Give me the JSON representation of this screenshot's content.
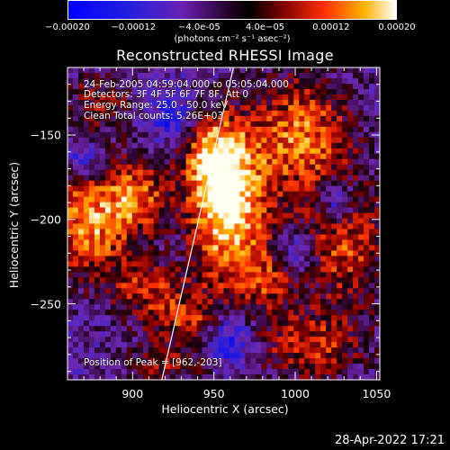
{
  "chart_data": {
    "type": "heatmap",
    "title": "Reconstructed RHESSI Image",
    "xlabel": "Heliocentric X (arcsec)",
    "ylabel": "Heliocentric Y (arcsec)",
    "xlim": [
      860,
      1052
    ],
    "ylim": [
      -295,
      -110
    ],
    "xticks": [
      900,
      950,
      1000,
      1050
    ],
    "yticks": [
      -150,
      -200,
      -250
    ],
    "colorbar": {
      "range": [
        -0.0002,
        0.0002
      ],
      "tick_labels": [
        "-0.00020",
        "-0.00012",
        "-4.0e-05",
        "4.0e-05",
        "0.00012",
        "0.00020"
      ],
      "tick_values": [
        -0.0002,
        -0.00012,
        -4e-05,
        4e-05,
        0.00012,
        0.0002
      ],
      "units_label": "(photons cm⁻² s⁻¹ asec⁻²)"
    },
    "annotations": {
      "time_range": "24-Feb-2005 04:59:04.000 to 05:05:04.000",
      "detectors": "Detectors: 3F 4F 5F 6F 7F 8F, Att 0",
      "energy_range": "Energy Range: 25.0 - 50.0 keV",
      "clean_counts": "Clean     Total counts: 5.26E+03",
      "peak": "Position of Peak = [962,-203]"
    },
    "peak_position": [
      962,
      -203
    ],
    "limb_line": [
      [
        918,
        -295
      ],
      [
        962,
        -110
      ]
    ],
    "bright_regions": [
      {
        "x": 960,
        "y": -200,
        "sx": 18,
        "sy": 35,
        "amp": 1.0
      },
      {
        "x": 950,
        "y": -165,
        "sx": 14,
        "sy": 20,
        "amp": 0.8
      },
      {
        "x": 1005,
        "y": -150,
        "sx": 22,
        "sy": 25,
        "amp": 0.8
      },
      {
        "x": 875,
        "y": -200,
        "sx": 20,
        "sy": 25,
        "amp": 0.9
      },
      {
        "x": 905,
        "y": -185,
        "sx": 12,
        "sy": 15,
        "amp": 0.6
      },
      {
        "x": 910,
        "y": -240,
        "sx": 16,
        "sy": 10,
        "amp": 0.55
      },
      {
        "x": 1030,
        "y": -215,
        "sx": 20,
        "sy": 25,
        "amp": 0.7
      },
      {
        "x": 1010,
        "y": -275,
        "sx": 25,
        "sy": 15,
        "amp": 0.6
      },
      {
        "x": 930,
        "y": -260,
        "sx": 20,
        "sy": 10,
        "amp": 0.55
      },
      {
        "x": 920,
        "y": -285,
        "sx": 18,
        "sy": 8,
        "amp": 0.5
      },
      {
        "x": 985,
        "y": -235,
        "sx": 12,
        "sy": 12,
        "amp": 0.45
      },
      {
        "x": 880,
        "y": -130,
        "sx": 15,
        "sy": 12,
        "amp": 0.45
      }
    ],
    "dark_regions": [
      {
        "x": 960,
        "y": -270,
        "sx": 10,
        "sy": 12,
        "amp": -0.7
      },
      {
        "x": 925,
        "y": -140,
        "sx": 10,
        "sy": 10,
        "amp": -0.5
      },
      {
        "x": 1025,
        "y": -190,
        "sx": 8,
        "sy": 10,
        "amp": -0.6
      },
      {
        "x": 870,
        "y": -165,
        "sx": 8,
        "sy": 8,
        "amp": -0.5
      },
      {
        "x": 1000,
        "y": -220,
        "sx": 10,
        "sy": 10,
        "amp": -0.5
      }
    ]
  },
  "footer_date": "28-Apr-2022 17:21"
}
